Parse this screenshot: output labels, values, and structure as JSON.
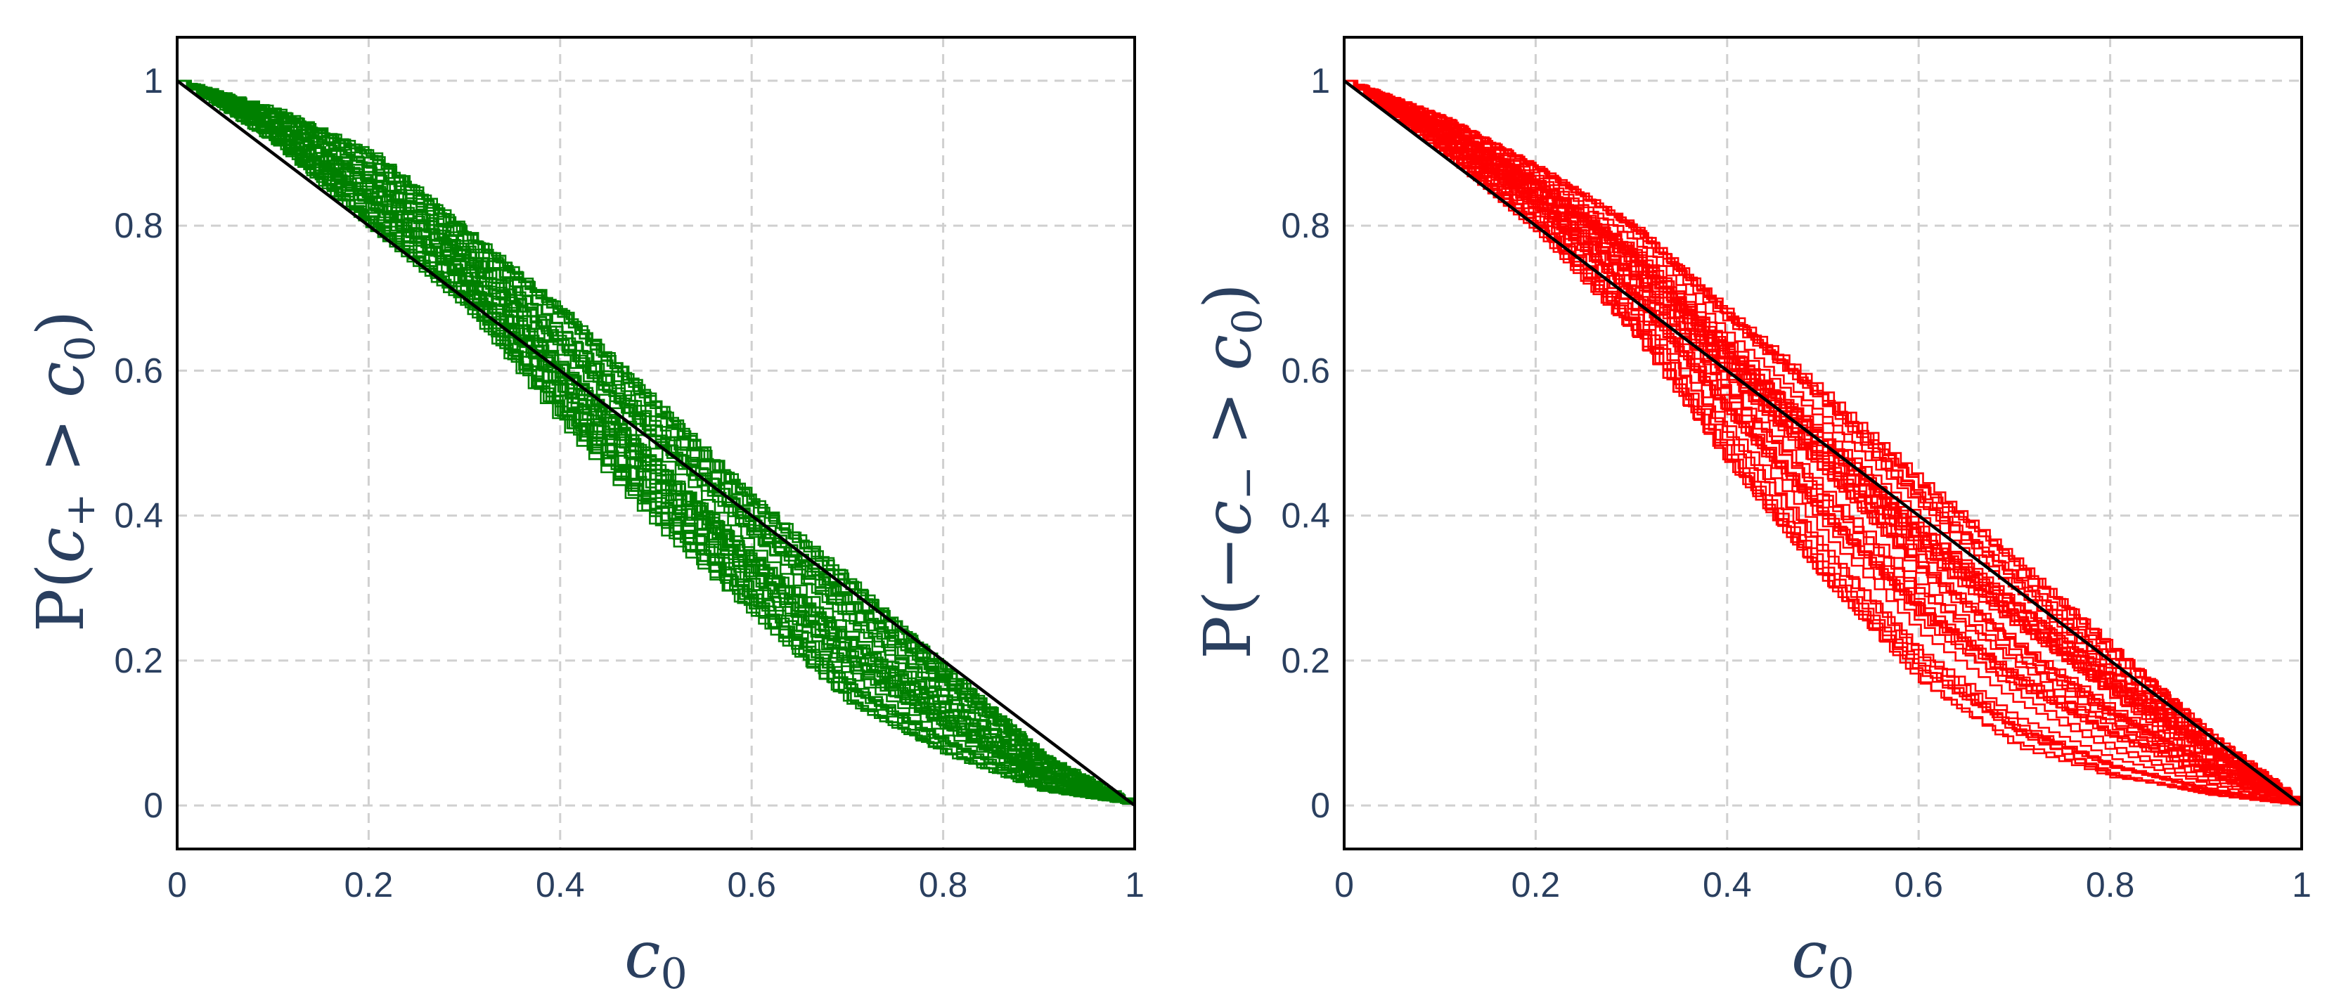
{
  "colors": {
    "series_left": "#008000",
    "series_right": "#ff0000",
    "reference": "#000000",
    "axis_text": "#2a3f5f"
  },
  "chart_data": [
    {
      "type": "line",
      "xlabel": "c0",
      "ylabel": "P(c+ > c0)",
      "xlim": [
        0,
        1
      ],
      "ylim": [
        -0.06,
        1.06
      ],
      "x_ticks": [
        "0",
        "0.2",
        "0.4",
        "0.6",
        "0.8",
        "1"
      ],
      "y_ticks": [
        "0",
        "0.2",
        "0.4",
        "0.6",
        "0.8",
        "1"
      ],
      "grid": true,
      "reference_line": {
        "x": [
          0,
          1
        ],
        "y": [
          1,
          0
        ]
      },
      "ensemble": {
        "count": 50,
        "style": "step",
        "color": "green"
      },
      "envelope": {
        "x": [
          0,
          0.1,
          0.2,
          0.3,
          0.4,
          0.5,
          0.6,
          0.7,
          0.8,
          0.9,
          1
        ],
        "upper": [
          1,
          0.96,
          0.9,
          0.79,
          0.68,
          0.55,
          0.42,
          0.31,
          0.19,
          0.07,
          0
        ],
        "lower": [
          1,
          0.91,
          0.79,
          0.68,
          0.52,
          0.38,
          0.26,
          0.14,
          0.07,
          0.02,
          0
        ]
      }
    },
    {
      "type": "line",
      "xlabel": "c0",
      "ylabel": "P(−c− > c0)",
      "xlim": [
        0,
        1
      ],
      "ylim": [
        -0.06,
        1.06
      ],
      "x_ticks": [
        "0",
        "0.2",
        "0.4",
        "0.6",
        "0.8",
        "1"
      ],
      "y_ticks": [
        "0",
        "0.2",
        "0.4",
        "0.6",
        "0.8",
        "1"
      ],
      "grid": true,
      "reference_line": {
        "x": [
          0,
          1
        ],
        "y": [
          1,
          0
        ]
      },
      "ensemble": {
        "count": 50,
        "style": "step",
        "color": "red"
      },
      "envelope": {
        "x": [
          0,
          0.1,
          0.2,
          0.3,
          0.4,
          0.5,
          0.6,
          0.7,
          0.8,
          0.9,
          1
        ],
        "upper": [
          1,
          0.95,
          0.88,
          0.8,
          0.68,
          0.57,
          0.45,
          0.34,
          0.22,
          0.1,
          0
        ],
        "lower": [
          1,
          0.9,
          0.79,
          0.65,
          0.47,
          0.31,
          0.17,
          0.08,
          0.03,
          0.01,
          0
        ]
      }
    }
  ],
  "panels": [
    {
      "xlabel_base": "c",
      "xlabel_sub": "0",
      "ylabel_parts": [
        "P(",
        "c",
        "+",
        " > ",
        "c",
        "0",
        ")"
      ]
    },
    {
      "xlabel_base": "c",
      "xlabel_sub": "0",
      "ylabel_parts": [
        "P(−",
        "c",
        "−",
        " > ",
        "c",
        "0",
        ")"
      ]
    }
  ]
}
